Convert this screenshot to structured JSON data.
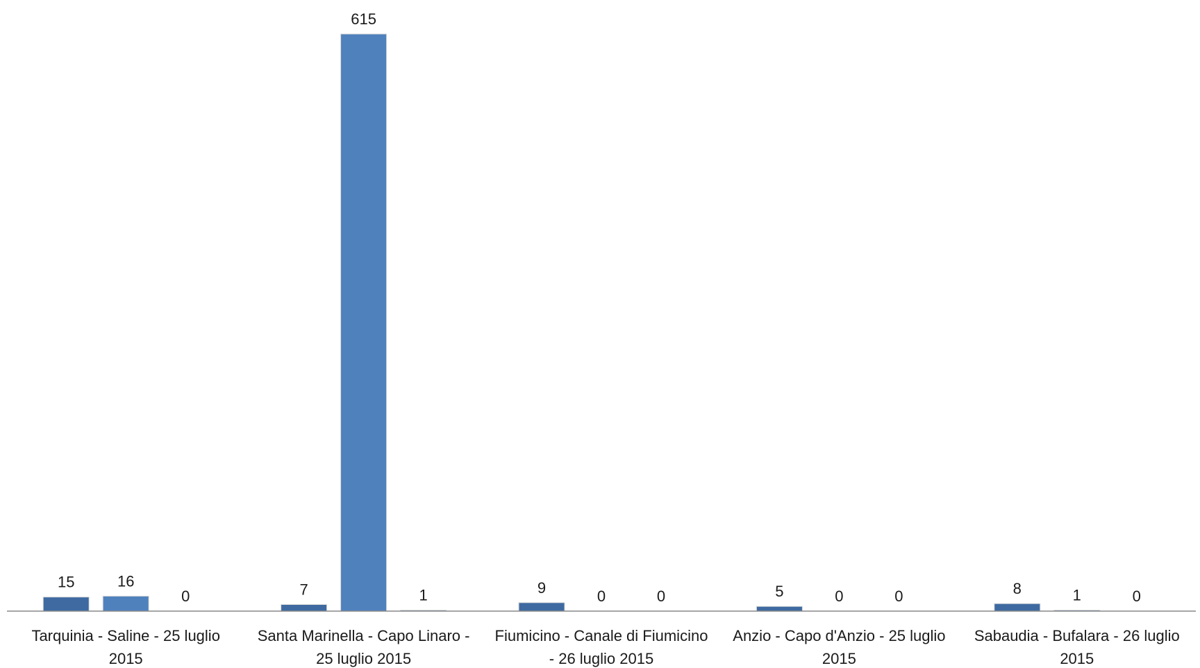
{
  "chart_data": {
    "type": "bar",
    "title": "",
    "xlabel": "",
    "ylabel": "",
    "ylim": [
      0,
      615
    ],
    "grid": false,
    "legend": "none",
    "categories": [
      [
        "Tarquinia - Saline - 25 luglio",
        "2015"
      ],
      [
        "Santa Marinella - Capo Linaro -",
        "25 luglio 2015"
      ],
      [
        "Fiumicino - Canale di Fiumicino",
        "- 26 luglio 2015"
      ],
      [
        "Anzio - Capo d'Anzio - 25 luglio",
        "2015"
      ],
      [
        "Sabaudia - Bufalara - 26 luglio",
        "2015"
      ]
    ],
    "series": [
      {
        "color": "#3e6aa1",
        "values": [
          15,
          7,
          9,
          5,
          8
        ]
      },
      {
        "color": "#4f81bd",
        "values": [
          16,
          615,
          0,
          0,
          1
        ]
      },
      {
        "color": "#6a95cc",
        "values": [
          0,
          1,
          0,
          0,
          0
        ]
      }
    ]
  }
}
